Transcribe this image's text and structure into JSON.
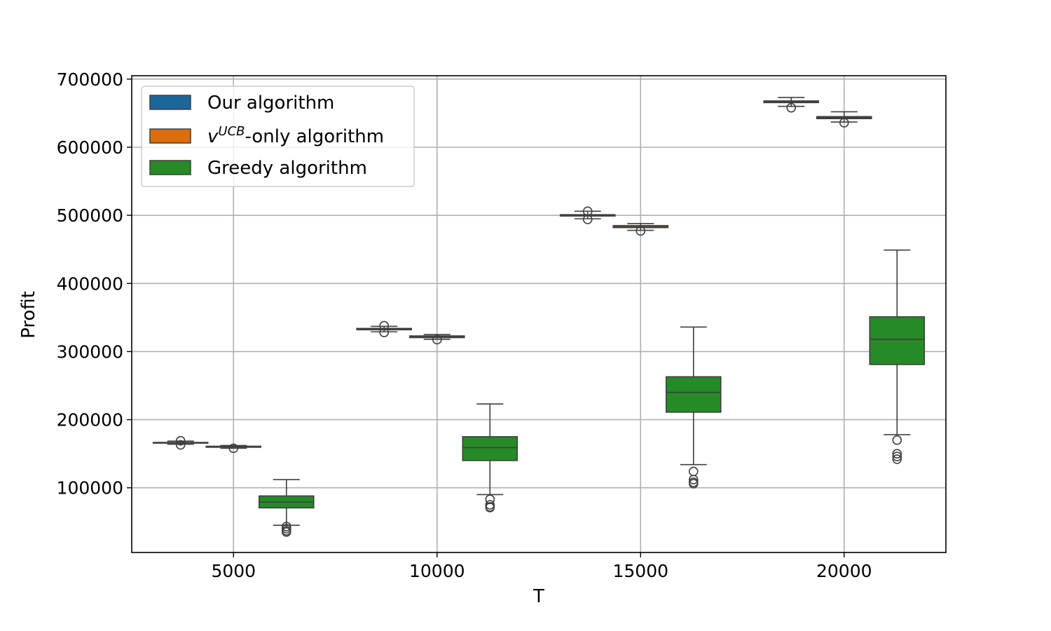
{
  "chart_data": {
    "type": "box",
    "title": "",
    "xlabel": "T",
    "ylabel": "Profit",
    "categories": [
      "5000",
      "10000",
      "15000",
      "20000"
    ],
    "x_ticks": [
      5000,
      10000,
      15000,
      20000
    ],
    "y_ticks": [
      100000,
      200000,
      300000,
      400000,
      500000,
      600000,
      700000
    ],
    "y_tick_labels": [
      "100000",
      "200000",
      "300000",
      "400000",
      "500000",
      "600000",
      "700000"
    ],
    "xlim": [
      2500,
      22500
    ],
    "ylim": [
      5000,
      705000
    ],
    "grid": true,
    "legend_position": "top-left",
    "series": [
      {
        "name_parts": [
          {
            "text": "Our algorithm",
            "style": "normal"
          }
        ],
        "color": "#1f77b4",
        "boxes": [
          {
            "x": 3700,
            "whislo": 164000,
            "q1": 165500,
            "median": 166000,
            "q3": 166600,
            "whishi": 168500,
            "outliers": [
              163000,
              169000
            ]
          },
          {
            "x": 8700,
            "whislo": 329000,
            "q1": 332000,
            "median": 333000,
            "q3": 334000,
            "whishi": 337000,
            "outliers": [
              328000,
              338000
            ]
          },
          {
            "x": 13700,
            "whislo": 495000,
            "q1": 499000,
            "median": 500000,
            "q3": 501000,
            "whishi": 506000,
            "outliers": [
              494000,
              506000
            ]
          },
          {
            "x": 18700,
            "whislo": 660000,
            "q1": 665500,
            "median": 666500,
            "q3": 668000,
            "whishi": 673000,
            "outliers": [
              658000
            ]
          }
        ]
      },
      {
        "name_parts": [
          {
            "text": "v",
            "style": "italic"
          },
          {
            "text": "UCB",
            "style": "italic-sup"
          },
          {
            "text": "-only algorithm",
            "style": "normal"
          }
        ],
        "color": "#ff7f0e",
        "boxes": [
          {
            "x": 5000,
            "whislo": 158000,
            "q1": 159500,
            "median": 160000,
            "q3": 161000,
            "whishi": 162000,
            "outliers": [
              158000
            ]
          },
          {
            "x": 10000,
            "whislo": 318000,
            "q1": 320500,
            "median": 321500,
            "q3": 323000,
            "whishi": 325000,
            "outliers": [
              317500
            ]
          },
          {
            "x": 15000,
            "whislo": 478000,
            "q1": 482000,
            "median": 483000,
            "q3": 485000,
            "whishi": 488000,
            "outliers": [
              477000
            ]
          },
          {
            "x": 20000,
            "whislo": 637000,
            "q1": 642000,
            "median": 643500,
            "q3": 645000,
            "whishi": 652000,
            "outliers": [
              636000
            ]
          }
        ]
      },
      {
        "name_parts": [
          {
            "text": "Greedy algorithm",
            "style": "normal"
          }
        ],
        "color": "#2ca02c",
        "boxes": [
          {
            "x": 6300,
            "whislo": 45000,
            "q1": 70500,
            "median": 79000,
            "q3": 88000,
            "whishi": 112000,
            "outliers": [
              43000,
              40000,
              37000,
              35000
            ]
          },
          {
            "x": 11300,
            "whislo": 90000,
            "q1": 140000,
            "median": 159000,
            "q3": 175000,
            "whishi": 223000,
            "outliers": [
              83000,
              75000,
              72000,
              71000
            ]
          },
          {
            "x": 16300,
            "whislo": 134000,
            "q1": 211000,
            "median": 240000,
            "q3": 263000,
            "whishi": 336000,
            "outliers": [
              124000,
              112000,
              108000,
              106000
            ]
          },
          {
            "x": 21300,
            "whislo": 178000,
            "q1": 281000,
            "median": 318000,
            "q3": 351000,
            "whishi": 449000,
            "outliers": [
              170000,
              150000,
              146000,
              142000
            ]
          }
        ]
      }
    ]
  }
}
